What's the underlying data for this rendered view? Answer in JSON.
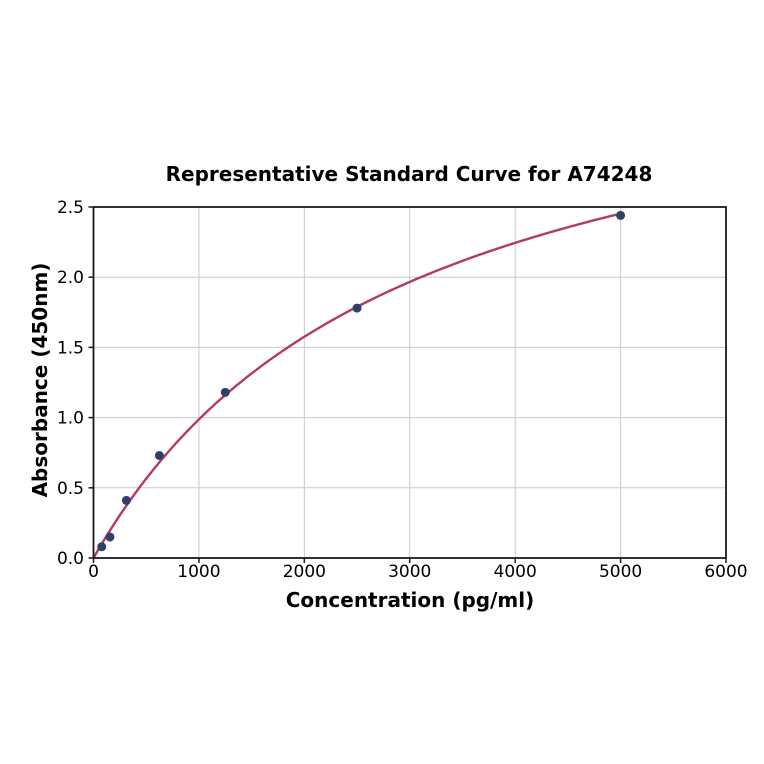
{
  "chart_data": {
    "type": "scatter-line",
    "title": "Representative Standard Curve for A74248",
    "xlabel": "Concentration (pg/ml)",
    "ylabel": "Absorbance (450nm)",
    "xlim": [
      0,
      6000
    ],
    "ylim": [
      0,
      2.5
    ],
    "grid": true,
    "legend_position": "none",
    "x_ticks": [
      {
        "value": 0,
        "label": "0"
      },
      {
        "value": 1000,
        "label": "1000"
      },
      {
        "value": 2000,
        "label": "2000"
      },
      {
        "value": 3000,
        "label": "3000"
      },
      {
        "value": 4000,
        "label": "4000"
      },
      {
        "value": 5000,
        "label": "5000"
      },
      {
        "value": 6000,
        "label": "6000"
      }
    ],
    "y_ticks": [
      {
        "value": 0,
        "label": "0.0"
      },
      {
        "value": 0.5,
        "label": "0.5"
      },
      {
        "value": 1,
        "label": "1.0"
      },
      {
        "value": 1.5,
        "label": "1.5"
      },
      {
        "value": 2,
        "label": "2.0"
      },
      {
        "value": 2.5,
        "label": "2.5"
      }
    ],
    "points": [
      {
        "x": 78,
        "y": 0.08
      },
      {
        "x": 156,
        "y": 0.15
      },
      {
        "x": 312,
        "y": 0.41
      },
      {
        "x": 625,
        "y": 0.73
      },
      {
        "x": 1250,
        "y": 1.18
      },
      {
        "x": 2500,
        "y": 1.78
      },
      {
        "x": 5000,
        "y": 2.44
      }
    ],
    "fit_curve": {
      "model": "saturation",
      "vmax": 3.9,
      "km": 2950,
      "x_start": 0,
      "x_end": 5000
    },
    "colors": {
      "curve": "#b43a5e",
      "marker": "#2d4169",
      "grid": "#c9c9c9",
      "axis": "#1a1a1a",
      "text": "#000000",
      "background": "#ffffff"
    }
  }
}
